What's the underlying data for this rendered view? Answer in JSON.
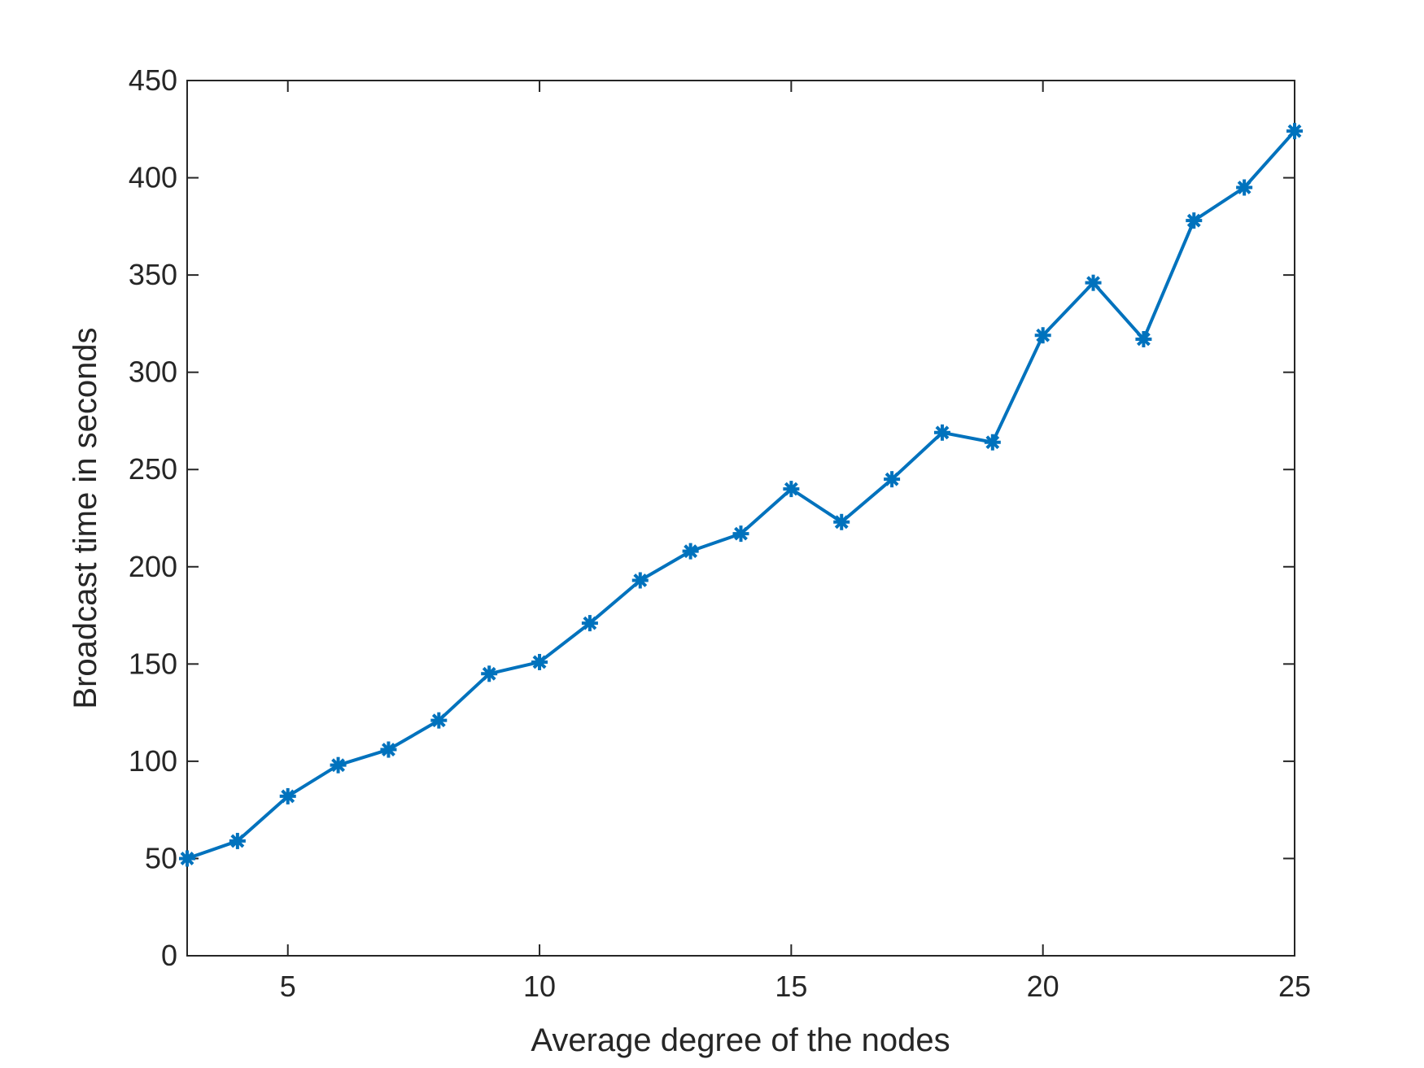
{
  "chart_data": {
    "type": "line",
    "xlabel": "Average degree of the nodes",
    "ylabel": "Broadcast time in seconds",
    "x": [
      3,
      4,
      5,
      6,
      7,
      8,
      9,
      10,
      11,
      12,
      13,
      14,
      15,
      16,
      17,
      18,
      19,
      20,
      21,
      22,
      23,
      24,
      25
    ],
    "series": [
      {
        "color": "#0072bd",
        "marker": "asterisk",
        "values": [
          50,
          59,
          82,
          98,
          106,
          121,
          145,
          151,
          171,
          193,
          208,
          217,
          240,
          223,
          245,
          269,
          264,
          319,
          346,
          317,
          378,
          395,
          424
        ]
      }
    ],
    "xlim": [
      3,
      25
    ],
    "xticks": [
      5,
      10,
      15,
      20,
      25
    ],
    "ylim": [
      0,
      450
    ],
    "yticks": [
      0,
      50,
      100,
      150,
      200,
      250,
      300,
      350,
      400,
      450
    ],
    "grid": false
  }
}
